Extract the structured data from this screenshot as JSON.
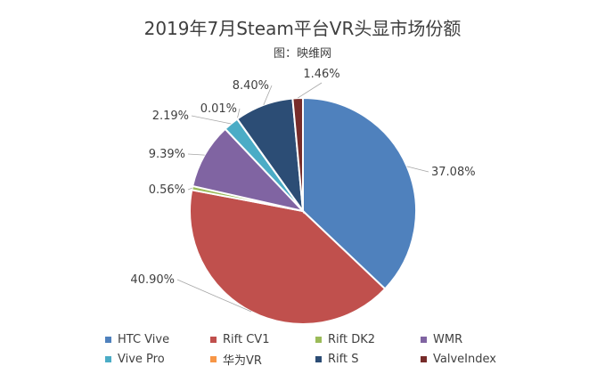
{
  "chart_data": {
    "type": "pie",
    "title": "2019年7月Steam平台VR头显市场份额",
    "subtitle": "图：映维网",
    "start_angle_deg": 0,
    "direction": "clockwise",
    "slices": [
      {
        "name": "HTC Vive",
        "value": 37.08,
        "label": "37.08%",
        "color": "#4f81bd"
      },
      {
        "name": "Rift CV1",
        "value": 40.9,
        "label": "40.90%",
        "color": "#c0504d"
      },
      {
        "name": "Rift DK2",
        "value": 0.56,
        "label": "0.56%",
        "color": "#9bbb59"
      },
      {
        "name": "WMR",
        "value": 9.39,
        "label": "9.39%",
        "color": "#8064a2"
      },
      {
        "name": "Vive Pro",
        "value": 2.19,
        "label": "2.19%",
        "color": "#4bacc6"
      },
      {
        "name": "华为VR",
        "value": 0.01,
        "label": "0.01%",
        "color": "#f79646"
      },
      {
        "name": "Rift S",
        "value": 8.4,
        "label": "8.40%",
        "color": "#2c4d75"
      },
      {
        "name": "ValveIndex",
        "value": 1.46,
        "label": "1.46%",
        "color": "#772c2a"
      }
    ],
    "legend_placement": "bottom"
  }
}
